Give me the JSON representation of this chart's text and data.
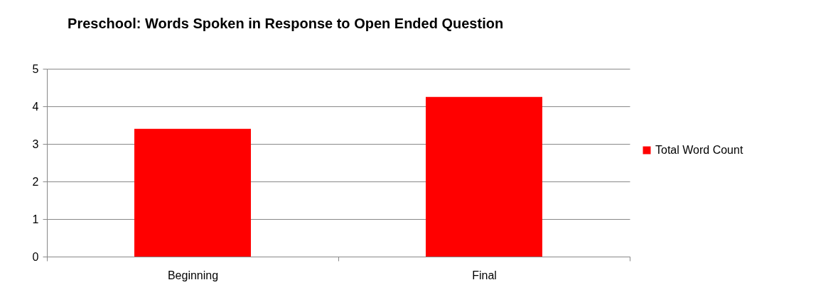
{
  "chart_data": {
    "type": "bar",
    "title": "Preschool: Words Spoken in Response to Open Ended Question",
    "categories": [
      "Beginning",
      "Final"
    ],
    "series": [
      {
        "name": "Total Word Count",
        "color": "#ff0000",
        "values": [
          3.4,
          4.25
        ]
      }
    ],
    "ylim": [
      0,
      5
    ],
    "yticks": [
      0,
      1,
      2,
      3,
      4,
      5
    ],
    "grid": "y",
    "legend": "right"
  }
}
